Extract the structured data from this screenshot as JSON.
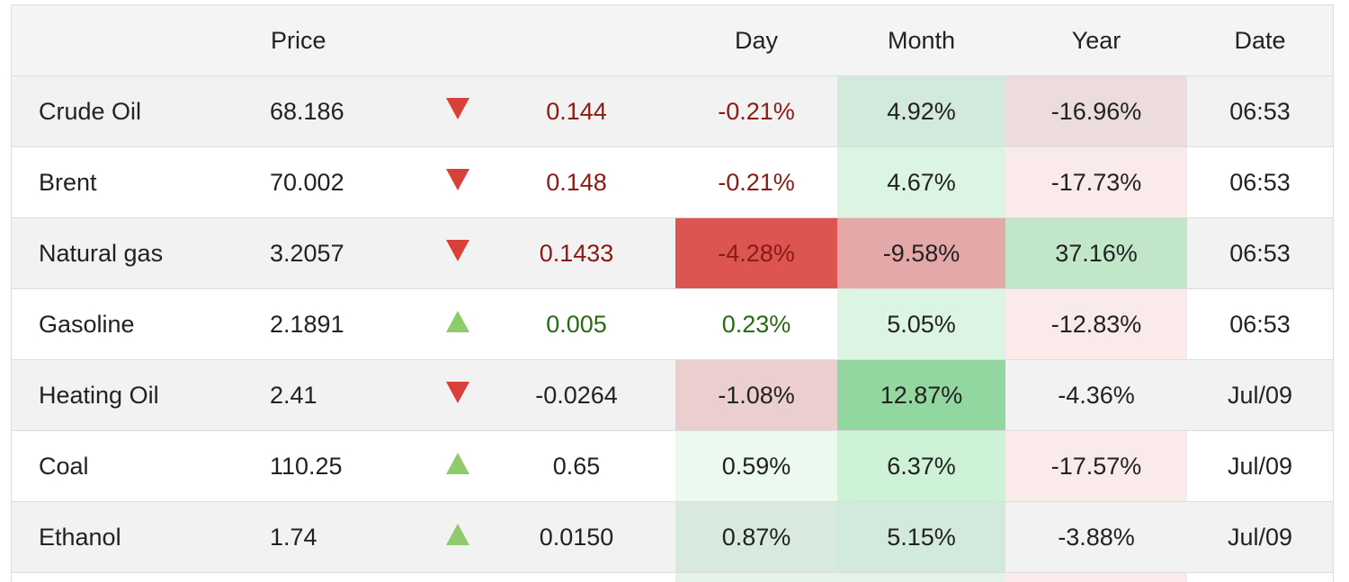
{
  "header": {
    "name": "",
    "price": "Price",
    "arrow": "",
    "change": "",
    "day": "Day",
    "month": "Month",
    "year": "Year",
    "date": "Date"
  },
  "colors": {
    "down_arrow": "#d9403a",
    "up_arrow": "#8fcb6a",
    "negative_text": "#8b1a14",
    "positive_text": "#2a6a14"
  },
  "rows": [
    {
      "name": "Crude Oil",
      "price": "68.186",
      "direction": "down",
      "change": "0.144",
      "change_tone": "neg",
      "day": "-0.21%",
      "day_tone": "neg",
      "month": "4.92%",
      "year": "-16.96%",
      "date": "06:53",
      "day_bg": "",
      "month_bg": "#d2eadc",
      "year_bg": "#ecdcdc"
    },
    {
      "name": "Brent",
      "price": "70.002",
      "direction": "down",
      "change": "0.148",
      "change_tone": "neg",
      "day": "-0.21%",
      "day_tone": "neg",
      "month": "4.67%",
      "year": "-17.73%",
      "date": "06:53",
      "day_bg": "",
      "month_bg": "#dcf5e2",
      "year_bg": "#fbeaea"
    },
    {
      "name": "Natural gas",
      "price": "3.2057",
      "direction": "down",
      "change": "0.1433",
      "change_tone": "neg",
      "day": "-4.28%",
      "day_tone": "neg",
      "month": "-9.58%",
      "year": "37.16%",
      "date": "06:53",
      "day_bg": "#dd5550",
      "month_bg": "#e5a8a8",
      "year_bg": "#c2e6c8"
    },
    {
      "name": "Gasoline",
      "price": "2.1891",
      "direction": "up",
      "change": "0.005",
      "change_tone": "pos",
      "day": "0.23%",
      "day_tone": "pos",
      "month": "5.05%",
      "year": "-12.83%",
      "date": "06:53",
      "day_bg": "",
      "month_bg": "#dcf5e2",
      "year_bg": "#fbeaea"
    },
    {
      "name": "Heating Oil",
      "price": "2.41",
      "direction": "down",
      "change": "-0.0264",
      "change_tone": "",
      "day": "-1.08%",
      "day_tone": "",
      "month": "12.87%",
      "year": "-4.36%",
      "date": "Jul/09",
      "day_bg": "#ebcfcf",
      "month_bg": "#92d7a0",
      "year_bg": ""
    },
    {
      "name": "Coal",
      "price": "110.25",
      "direction": "up",
      "change": "0.65",
      "change_tone": "",
      "day": "0.59%",
      "day_tone": "",
      "month": "6.37%",
      "year": "-17.57%",
      "date": "Jul/09",
      "day_bg": "#ecf9ef",
      "month_bg": "#cdf2d5",
      "year_bg": "#fbeaea"
    },
    {
      "name": "Ethanol",
      "price": "1.74",
      "direction": "up",
      "change": "0.0150",
      "change_tone": "",
      "day": "0.87%",
      "day_tone": "",
      "month": "5.15%",
      "year": "-3.88%",
      "date": "Jul/09",
      "day_bg": "#d8eadd",
      "month_bg": "#d2eadc",
      "year_bg": ""
    }
  ]
}
